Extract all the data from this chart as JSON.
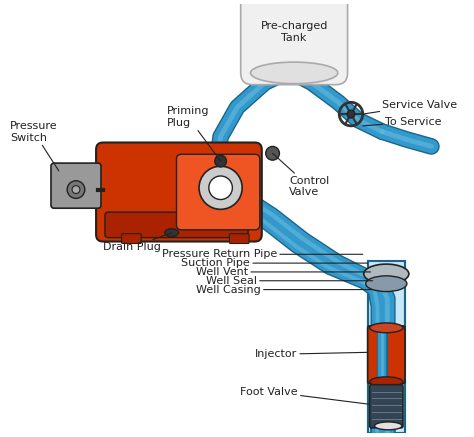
{
  "bg_color": "#ffffff",
  "pump_color": "#cc3300",
  "pump_dark": "#aa2200",
  "pump_light": "#ee5522",
  "pipe_color": "#3399cc",
  "pipe_dark": "#1a6688",
  "pipe_light": "#66bbdd",
  "tank_color": "#e8e8e8",
  "tank_stroke": "#aaaaaa",
  "switch_color": "#999999",
  "switch_dark": "#666666",
  "dark_color": "#222222",
  "injector_color": "#cc3300",
  "foot_color": "#444455",
  "label_fontsize": 8.0,
  "label_color": "#222222",
  "labels": {
    "pressure_switch": "Pressure\nSwitch",
    "priming_plug": "Priming\nPlug",
    "control_valve": "Control\nValve",
    "service_valve": "Service Valve",
    "to_service": "To Service",
    "drain_plug": "Drain Plug",
    "pressure_return_pipe": "Pressure Return Pipe",
    "suction_pipe": "Suction Pipe",
    "well_vent": "Well Vent",
    "well_seal": "Well Seal",
    "well_casing": "Well Casing",
    "injector": "Injector",
    "foot_valve": "Foot Valve",
    "pre_charged_tank": "Pre-charged\nTank"
  }
}
